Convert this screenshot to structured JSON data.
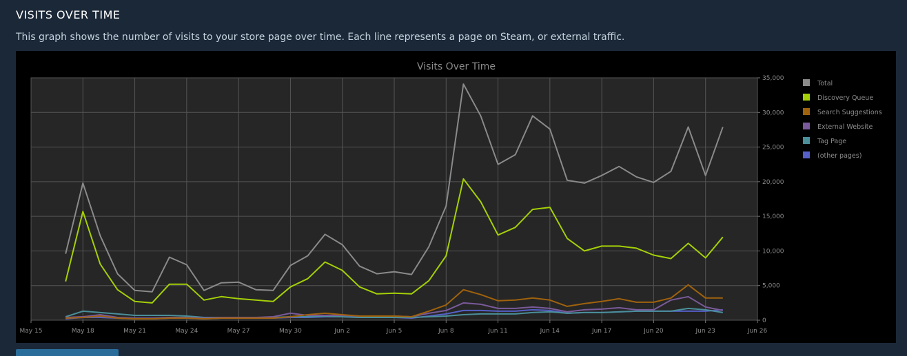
{
  "header": {
    "title": "VISITS OVER TIME",
    "description": "This graph shows the number of visits to your store page over time. Each line represents a page on Steam, or external traffic."
  },
  "chart_data": {
    "type": "line",
    "title": "Visits Over Time",
    "xlabel": "",
    "ylabel": "",
    "ylim": [
      0,
      35000
    ],
    "xlim": [
      "2024-05-15",
      "2024-06-26"
    ],
    "x_tick_labels": [
      "May 15",
      "May 18",
      "May 21",
      "May 24",
      "May 27",
      "May 30",
      "Jun 2",
      "Jun 5",
      "Jun 8",
      "Jun 11",
      "Jun 14",
      "Jun 17",
      "Jun 20",
      "Jun 23",
      "Jun 26"
    ],
    "y_tick_labels": [
      "0",
      "5,000",
      "10,000",
      "15,000",
      "20,000",
      "25,000",
      "30,000",
      "35,000"
    ],
    "grid": true,
    "legend_position": "right",
    "x": [
      "2024-05-17",
      "2024-05-18",
      "2024-05-19",
      "2024-05-20",
      "2024-05-21",
      "2024-05-22",
      "2024-05-23",
      "2024-05-24",
      "2024-05-25",
      "2024-05-26",
      "2024-05-27",
      "2024-05-28",
      "2024-05-29",
      "2024-05-30",
      "2024-05-31",
      "2024-06-01",
      "2024-06-02",
      "2024-06-03",
      "2024-06-04",
      "2024-06-05",
      "2024-06-06",
      "2024-06-07",
      "2024-06-08",
      "2024-06-09",
      "2024-06-10",
      "2024-06-11",
      "2024-06-12",
      "2024-06-13",
      "2024-06-14",
      "2024-06-15",
      "2024-06-16",
      "2024-06-17",
      "2024-06-18",
      "2024-06-19",
      "2024-06-20",
      "2024-06-21",
      "2024-06-22",
      "2024-06-23",
      "2024-06-24"
    ],
    "series": [
      {
        "name": "Total",
        "color": "#8a8a8a",
        "values": [
          9600,
          19800,
          12200,
          6700,
          4300,
          4100,
          9100,
          8000,
          4300,
          5400,
          5500,
          4400,
          4300,
          7900,
          9300,
          12400,
          10900,
          7800,
          6700,
          7000,
          6600,
          10600,
          16500,
          34100,
          29500,
          22500,
          23900,
          29500,
          27600,
          20200,
          19800,
          20900,
          22200,
          20700,
          19900,
          21500,
          27900,
          20900,
          27900
        ]
      },
      {
        "name": "Discovery Queue",
        "color": "#a4d007",
        "values": [
          5600,
          15700,
          8100,
          4400,
          2700,
          2500,
          5200,
          5200,
          2900,
          3400,
          3100,
          2900,
          2700,
          4800,
          6000,
          8400,
          7200,
          4800,
          3800,
          3900,
          3800,
          5700,
          9300,
          20400,
          17100,
          12300,
          13400,
          16000,
          16300,
          11800,
          10000,
          10700,
          10700,
          10400,
          9400,
          8900,
          11100,
          9000,
          12000
        ]
      },
      {
        "name": "Search Suggestions",
        "color": "#a0620c",
        "values": [
          300,
          400,
          600,
          300,
          200,
          200,
          300,
          300,
          200,
          300,
          300,
          300,
          300,
          500,
          800,
          1000,
          800,
          600,
          600,
          600,
          500,
          1300,
          2200,
          4400,
          3700,
          2800,
          2900,
          3200,
          2900,
          2000,
          2400,
          2700,
          3100,
          2600,
          2600,
          3200,
          5100,
          3200,
          3200
        ]
      },
      {
        "name": "External Website",
        "color": "#7a5a9a",
        "values": [
          400,
          500,
          800,
          400,
          300,
          300,
          400,
          400,
          300,
          400,
          400,
          400,
          500,
          1000,
          700,
          700,
          700,
          600,
          600,
          600,
          500,
          1000,
          1400,
          2500,
          2300,
          1700,
          1700,
          1900,
          1700,
          1200,
          1500,
          1600,
          1800,
          1500,
          1500,
          2900,
          3400,
          1900,
          1400
        ]
      },
      {
        "name": "Tag Page",
        "color": "#4a8f9a",
        "values": [
          500,
          1300,
          1100,
          900,
          700,
          700,
          700,
          600,
          400,
          400,
          400,
          400,
          400,
          500,
          500,
          600,
          500,
          400,
          400,
          400,
          400,
          500,
          600,
          800,
          900,
          900,
          900,
          1100,
          1200,
          1000,
          1100,
          1100,
          1200,
          1300,
          1300,
          1300,
          1700,
          1500,
          1100
        ]
      },
      {
        "name": "(other pages)",
        "color": "#5560c8",
        "values": [
          200,
          400,
          400,
          300,
          200,
          200,
          300,
          300,
          200,
          300,
          300,
          300,
          300,
          400,
          400,
          500,
          500,
          400,
          400,
          400,
          300,
          600,
          900,
          1400,
          1400,
          1300,
          1300,
          1500,
          1400,
          1000,
          1100,
          1100,
          1200,
          1300,
          1300,
          1300,
          1300,
          1300,
          1500
        ]
      }
    ]
  }
}
